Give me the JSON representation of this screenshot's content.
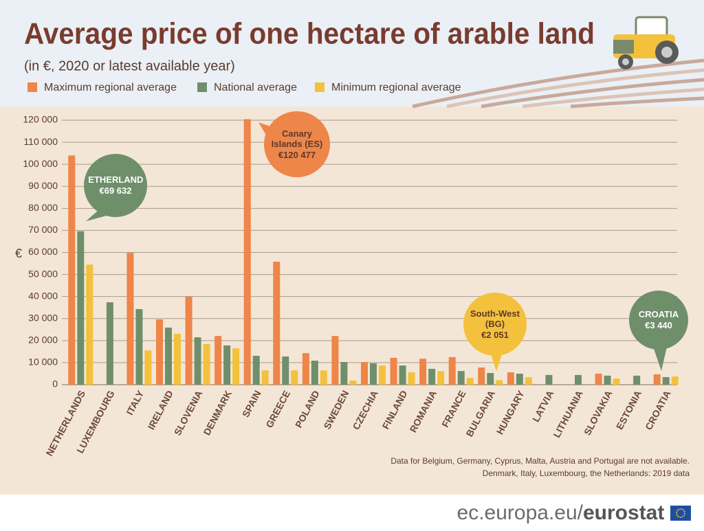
{
  "chart_data": {
    "type": "bar",
    "title": "Average price of one hectare of arable land",
    "subtitle": "(in €, 2020 or latest available year)",
    "y_label": "€",
    "categories": [
      "NETHERLANDS",
      "LUXEMBOURG",
      "ITALY",
      "IRELAND",
      "SLOVENIA",
      "DENMARK",
      "SPAIN",
      "GREECE",
      "POLAND",
      "SWEDEN",
      "CZECHIA",
      "FINLAND",
      "ROMANIA",
      "FRANCE",
      "BULGARIA",
      "HUNGARY",
      "LATVIA",
      "LITHUANIA",
      "SLOVAKIA",
      "ESTONIA",
      "CROATIA"
    ],
    "series": [
      {
        "name": "Maximum regional average",
        "color": "#ee8549",
        "values": [
          104000,
          null,
          59800,
          29600,
          39900,
          22100,
          120477,
          55800,
          14300,
          22100,
          10300,
          12200,
          11800,
          12500,
          7800,
          5600,
          null,
          null,
          5000,
          null,
          4700
        ]
      },
      {
        "name": "National average",
        "color": "#6f8f6b",
        "values": [
          69632,
          37400,
          34300,
          25900,
          21500,
          17800,
          13100,
          12800,
          10900,
          10300,
          9700,
          8700,
          7200,
          6200,
          5300,
          5000,
          4400,
          4400,
          4100,
          4100,
          3440
        ]
      },
      {
        "name": "Minimum regional average",
        "color": "#f4c13d",
        "values": [
          54500,
          null,
          15600,
          23100,
          18400,
          16500,
          6500,
          6500,
          6500,
          1900,
          8700,
          5600,
          6200,
          3100,
          2051,
          3400,
          null,
          null,
          2800,
          null,
          3700
        ]
      }
    ],
    "ylim": [
      0,
      120000
    ],
    "yticks": [
      0,
      {
        "value": 10000,
        "label": "10 000"
      },
      {
        "value": 20000,
        "label": "20 000"
      },
      {
        "value": 30000,
        "label": "30 000"
      },
      {
        "value": 40000,
        "label": "40 000"
      },
      {
        "value": 50000,
        "label": "50 000"
      },
      {
        "value": 60000,
        "label": "60 000"
      },
      {
        "value": 70000,
        "label": "70 000"
      },
      {
        "value": 80000,
        "label": "80 000"
      },
      {
        "value": 90000,
        "label": "90 000"
      },
      {
        "value": 100000,
        "label": "100 000"
      },
      {
        "value": 110000,
        "label": "110 000"
      },
      {
        "value": 120000,
        "label": "120 000"
      }
    ],
    "grid": true,
    "annotations": [
      {
        "title": "NETHERLANDS",
        "label": "€69 632"
      },
      {
        "title": "Canary Islands (ES)",
        "label": "€120 477"
      },
      {
        "title": "South-West (BG)",
        "label": "€2 051"
      },
      {
        "title": "CROATIA",
        "label": "€3 440"
      }
    ],
    "notes": [
      "Data for Belgium, Germany, Cyprus, Malta, Austria and Portugal are not available.",
      "Denmark, Italy, Luxembourg, the Netherlands: 2019 data"
    ],
    "source": {
      "site": "ec.europa.eu/",
      "brand": "eurostat"
    }
  }
}
